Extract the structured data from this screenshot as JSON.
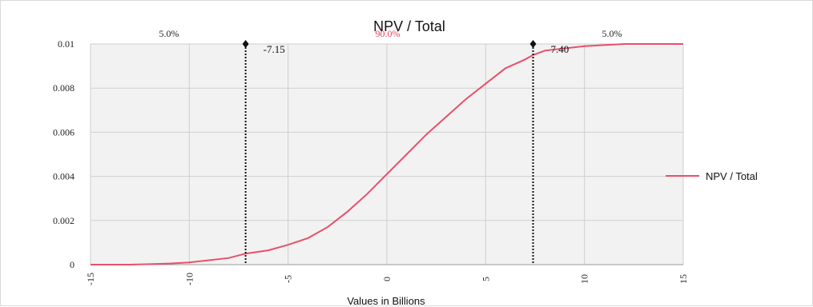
{
  "chart_data": {
    "type": "line",
    "title": "NPV / Total",
    "xlabel": "Values in Billions",
    "ylabel": "",
    "xlim": [
      -15,
      15
    ],
    "ylim": [
      0,
      0.01
    ],
    "x_ticks": [
      "-15",
      "-10",
      "-5",
      "0",
      "5",
      "10",
      "15"
    ],
    "y_ticks": [
      "0",
      "0.002",
      "0.004",
      "0.006",
      "0.008",
      "0.01"
    ],
    "grid": true,
    "legend_position": "right",
    "series": [
      {
        "name": "NPV / Total",
        "color": "#e8506b",
        "x": [
          -15,
          -13,
          -12,
          -11,
          -10,
          -9,
          -8,
          -7.15,
          -6,
          -5,
          -4,
          -3,
          -2,
          -1,
          0,
          1,
          2,
          3,
          4,
          5,
          6,
          7,
          7.4,
          8,
          9,
          10,
          11,
          12,
          13,
          15
        ],
        "y": [
          0,
          0,
          2e-05,
          5e-05,
          0.0001,
          0.0002,
          0.0003,
          0.0005,
          0.00065,
          0.0009,
          0.0012,
          0.0017,
          0.0024,
          0.0032,
          0.0041,
          0.005,
          0.0059,
          0.0067,
          0.0075,
          0.0082,
          0.0089,
          0.0093,
          0.0095,
          0.0097,
          0.0098,
          0.0099,
          0.00995,
          0.01,
          0.01,
          0.01
        ]
      }
    ],
    "markers": [
      {
        "x": -7.15,
        "label": "-7.15"
      },
      {
        "x": 7.4,
        "label": "7.40"
      }
    ],
    "region_labels": {
      "left": "5.0%",
      "middle": "90.0%",
      "right": "5.0%"
    }
  }
}
